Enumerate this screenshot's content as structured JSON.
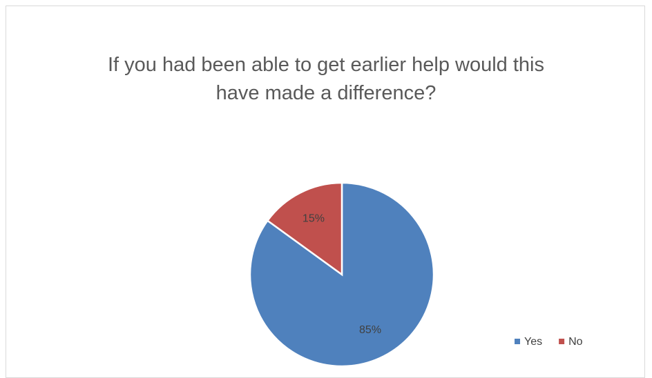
{
  "chart_data": {
    "type": "pie",
    "title": "If you had been able to get earlier help would this have made a difference?",
    "categories": [
      "Yes",
      "No"
    ],
    "values": [
      85,
      15
    ],
    "value_labels": [
      "85%",
      "15%"
    ],
    "colors": [
      "#4f81bd",
      "#c0504d"
    ],
    "legend": "bottom-right"
  }
}
